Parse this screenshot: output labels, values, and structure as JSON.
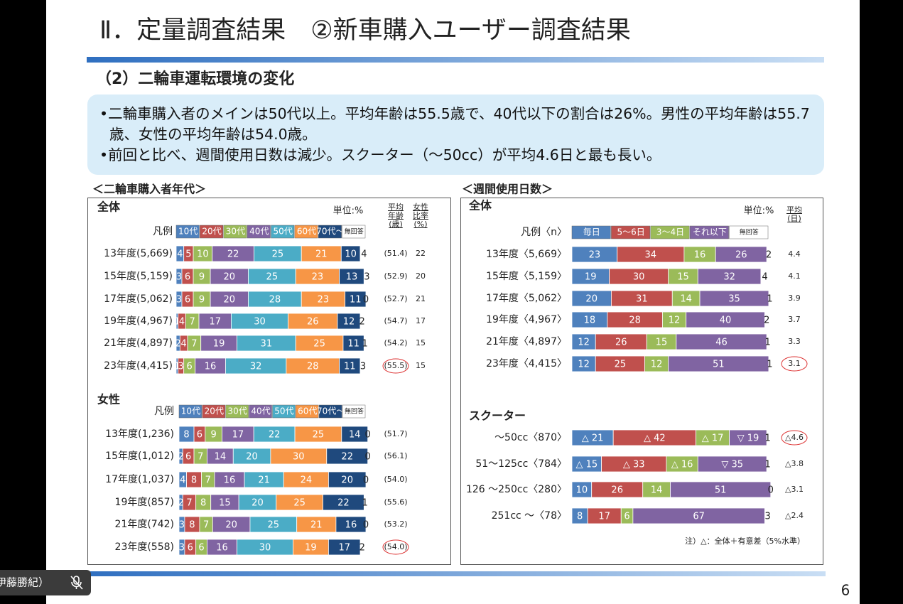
{
  "slide": {
    "title": "Ⅱ．定量調査結果　②新車購入ユーザー調査結果",
    "section": "（2）二輪車運転環境の変化",
    "bullets": [
      "•二輪車購入者のメインは50代以上。平均年齢は55.5歳で、40代以下の割合は26%。男性の平均年齢は55.7歳、女性の平均年齢は54.0歳。",
      "•前回と比べ、週間使用日数は減少。スクーター（～50cc）が平均4.6日と最も長い。"
    ],
    "panel_titles": [
      "＜二輪車購入者年代＞",
      "＜週間使用日数＞"
    ],
    "page_number": "6",
    "participant": "伊藤勝紀）"
  },
  "chart_data": [
    {
      "type": "bar",
      "orientation": "horizontal",
      "stacked": true,
      "title": "全体",
      "unit": "単位:%",
      "legend_label": "凡例",
      "xlim": [
        0,
        100
      ],
      "categories": [
        "13年度(5,669)",
        "15年度(5,159)",
        "17年度(5,062)",
        "19年度(4,967)",
        "21年度(4,897)",
        "23年度(4,415)"
      ],
      "series": [
        {
          "name": "10代",
          "color": "#4f81bd",
          "values": [
            4,
            3,
            3,
            1,
            2,
            1
          ]
        },
        {
          "name": "20代",
          "color": "#c0504d",
          "values": [
            5,
            6,
            6,
            4,
            4,
            3
          ]
        },
        {
          "name": "30代",
          "color": "#9bbb59",
          "values": [
            10,
            9,
            9,
            7,
            7,
            6
          ]
        },
        {
          "name": "40代",
          "color": "#8064a2",
          "values": [
            22,
            20,
            20,
            17,
            19,
            16
          ]
        },
        {
          "name": "50代",
          "color": "#4bacc6",
          "values": [
            25,
            25,
            28,
            30,
            31,
            32
          ]
        },
        {
          "name": "60代",
          "color": "#f79646",
          "values": [
            21,
            23,
            23,
            26,
            25,
            28
          ]
        },
        {
          "name": "70代～",
          "color": "#1f497d",
          "values": [
            10,
            13,
            11,
            12,
            11,
            11
          ]
        },
        {
          "name": "無回答",
          "color": "#ffffff",
          "values": [
            4,
            3,
            0,
            2,
            1,
            3
          ]
        }
      ],
      "columns": [
        {
          "header": "平均年齢(歳)",
          "values": [
            51.4,
            52.9,
            52.7,
            54.7,
            54.2,
            55.5
          ],
          "value_labels": [
            "(51.4)",
            "(52.9)",
            "(52.7)",
            "(54.7)",
            "(54.2)",
            "(55.5)"
          ]
        },
        {
          "header": "女性比率(%)",
          "values": [
            22,
            20,
            21,
            17,
            15,
            15
          ]
        }
      ]
    },
    {
      "type": "bar",
      "orientation": "horizontal",
      "stacked": true,
      "title": "女性",
      "legend_label": "凡例",
      "xlim": [
        0,
        100
      ],
      "categories": [
        "13年度(1,236)",
        "15年度(1,012)",
        "17年度(1,037)",
        "19年度(857)",
        "21年度(742)",
        "23年度(558)"
      ],
      "series": [
        {
          "name": "10代",
          "color": "#4f81bd",
          "values": [
            8,
            2,
            4,
            2,
            3,
            3
          ]
        },
        {
          "name": "20代",
          "color": "#c0504d",
          "values": [
            6,
            6,
            8,
            7,
            8,
            6
          ]
        },
        {
          "name": "30代",
          "color": "#9bbb59",
          "values": [
            9,
            7,
            7,
            8,
            7,
            6
          ]
        },
        {
          "name": "40代",
          "color": "#8064a2",
          "values": [
            17,
            14,
            16,
            15,
            20,
            16
          ]
        },
        {
          "name": "50代",
          "color": "#4bacc6",
          "values": [
            22,
            20,
            21,
            20,
            25,
            30
          ]
        },
        {
          "name": "60代",
          "color": "#f79646",
          "values": [
            25,
            30,
            24,
            25,
            21,
            19
          ]
        },
        {
          "name": "70代～",
          "color": "#1f497d",
          "values": [
            14,
            22,
            20,
            22,
            16,
            17
          ]
        },
        {
          "name": "無回答",
          "color": "#ffffff",
          "values": [
            0,
            0,
            0,
            1,
            0,
            2
          ]
        }
      ],
      "columns": [
        {
          "values": [
            51.7,
            56.1,
            54.0,
            55.6,
            53.2,
            54.0
          ],
          "value_labels": [
            "(51.7)",
            "(56.1)",
            "(54.0)",
            "(55.6)",
            "(53.2)",
            "(54.0)"
          ]
        }
      ]
    },
    {
      "type": "bar",
      "orientation": "horizontal",
      "stacked": true,
      "title": "全体",
      "unit": "単位:%",
      "legend_label": "凡例〈n〉",
      "xlim": [
        0,
        100
      ],
      "categories": [
        "13年度〈5,669〉",
        "15年度〈5,159〉",
        "17年度〈5,062〉",
        "19年度〈4,967〉",
        "21年度〈4,897〉",
        "23年度〈4,415〉"
      ],
      "series": [
        {
          "name": "毎日",
          "color": "#4f81bd",
          "values": [
            23,
            19,
            20,
            18,
            12,
            12
          ]
        },
        {
          "name": "5～6日",
          "color": "#c0504d",
          "values": [
            34,
            30,
            31,
            28,
            26,
            25
          ]
        },
        {
          "name": "3～4日",
          "color": "#9bbb59",
          "values": [
            16,
            15,
            14,
            12,
            15,
            12
          ]
        },
        {
          "name": "それ以下",
          "color": "#8064a2",
          "values": [
            26,
            32,
            35,
            40,
            46,
            51
          ]
        },
        {
          "name": "無回答",
          "color": "#ffffff",
          "values": [
            2,
            4,
            1,
            2,
            1,
            1
          ]
        }
      ],
      "columns": [
        {
          "header": "平均(日)",
          "values": [
            4.4,
            4.1,
            3.9,
            3.7,
            3.3,
            3.1
          ]
        }
      ]
    },
    {
      "type": "bar",
      "orientation": "horizontal",
      "stacked": true,
      "title": "スクーター",
      "xlim": [
        0,
        100
      ],
      "note": "注）△：全体＋有意差（5%水準）",
      "categories": [
        "～50cc〈870〉",
        "51～125cc〈784〉",
        "126 ～250cc〈280〉",
        "251cc ～〈78〉"
      ],
      "series": [
        {
          "name": "毎日",
          "color": "#4f81bd",
          "values": [
            21,
            15,
            10,
            8
          ],
          "value_labels": [
            "△ 21",
            "△ 15",
            "10",
            "8"
          ]
        },
        {
          "name": "5～6日",
          "color": "#c0504d",
          "values": [
            42,
            33,
            26,
            17
          ],
          "value_labels": [
            "△ 42",
            "△ 33",
            "26",
            "17"
          ]
        },
        {
          "name": "3～4日",
          "color": "#9bbb59",
          "values": [
            17,
            16,
            14,
            6
          ],
          "value_labels": [
            "△ 17",
            "△ 16",
            "14",
            "6"
          ]
        },
        {
          "name": "それ以下",
          "color": "#8064a2",
          "values": [
            19,
            35,
            51,
            67
          ],
          "value_labels": [
            "▽ 19",
            "▽ 35",
            "51",
            "67"
          ]
        },
        {
          "name": "無回答",
          "color": "#ffffff",
          "values": [
            1,
            1,
            0,
            3
          ]
        }
      ],
      "columns": [
        {
          "values": [
            4.6,
            3.8,
            3.1,
            2.4
          ],
          "value_labels": [
            "△4.6",
            "△3.8",
            "△3.1",
            "△2.4"
          ]
        }
      ]
    }
  ]
}
